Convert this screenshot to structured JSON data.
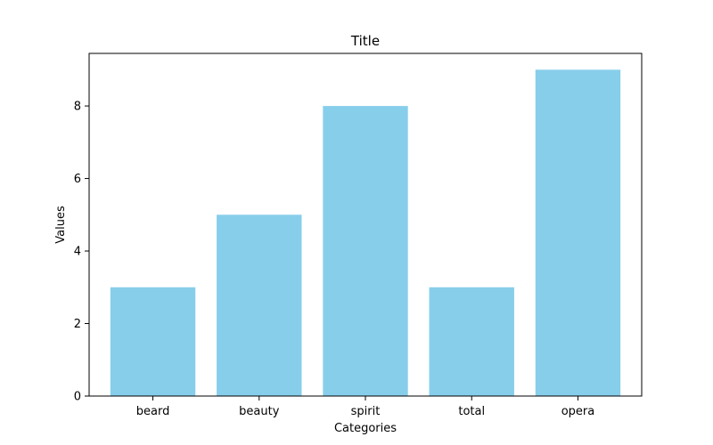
{
  "chart_data": {
    "type": "bar",
    "title": "Title",
    "xlabel": "Categories",
    "ylabel": "Values",
    "categories": [
      "beard",
      "beauty",
      "spirit",
      "total",
      "opera"
    ],
    "values": [
      3,
      5,
      8,
      3,
      9
    ],
    "ylim": [
      0,
      9.45
    ],
    "yticks": [
      0,
      2,
      4,
      6,
      8
    ],
    "bar_color": "#87CEEB",
    "grid": false,
    "legend": "none"
  }
}
